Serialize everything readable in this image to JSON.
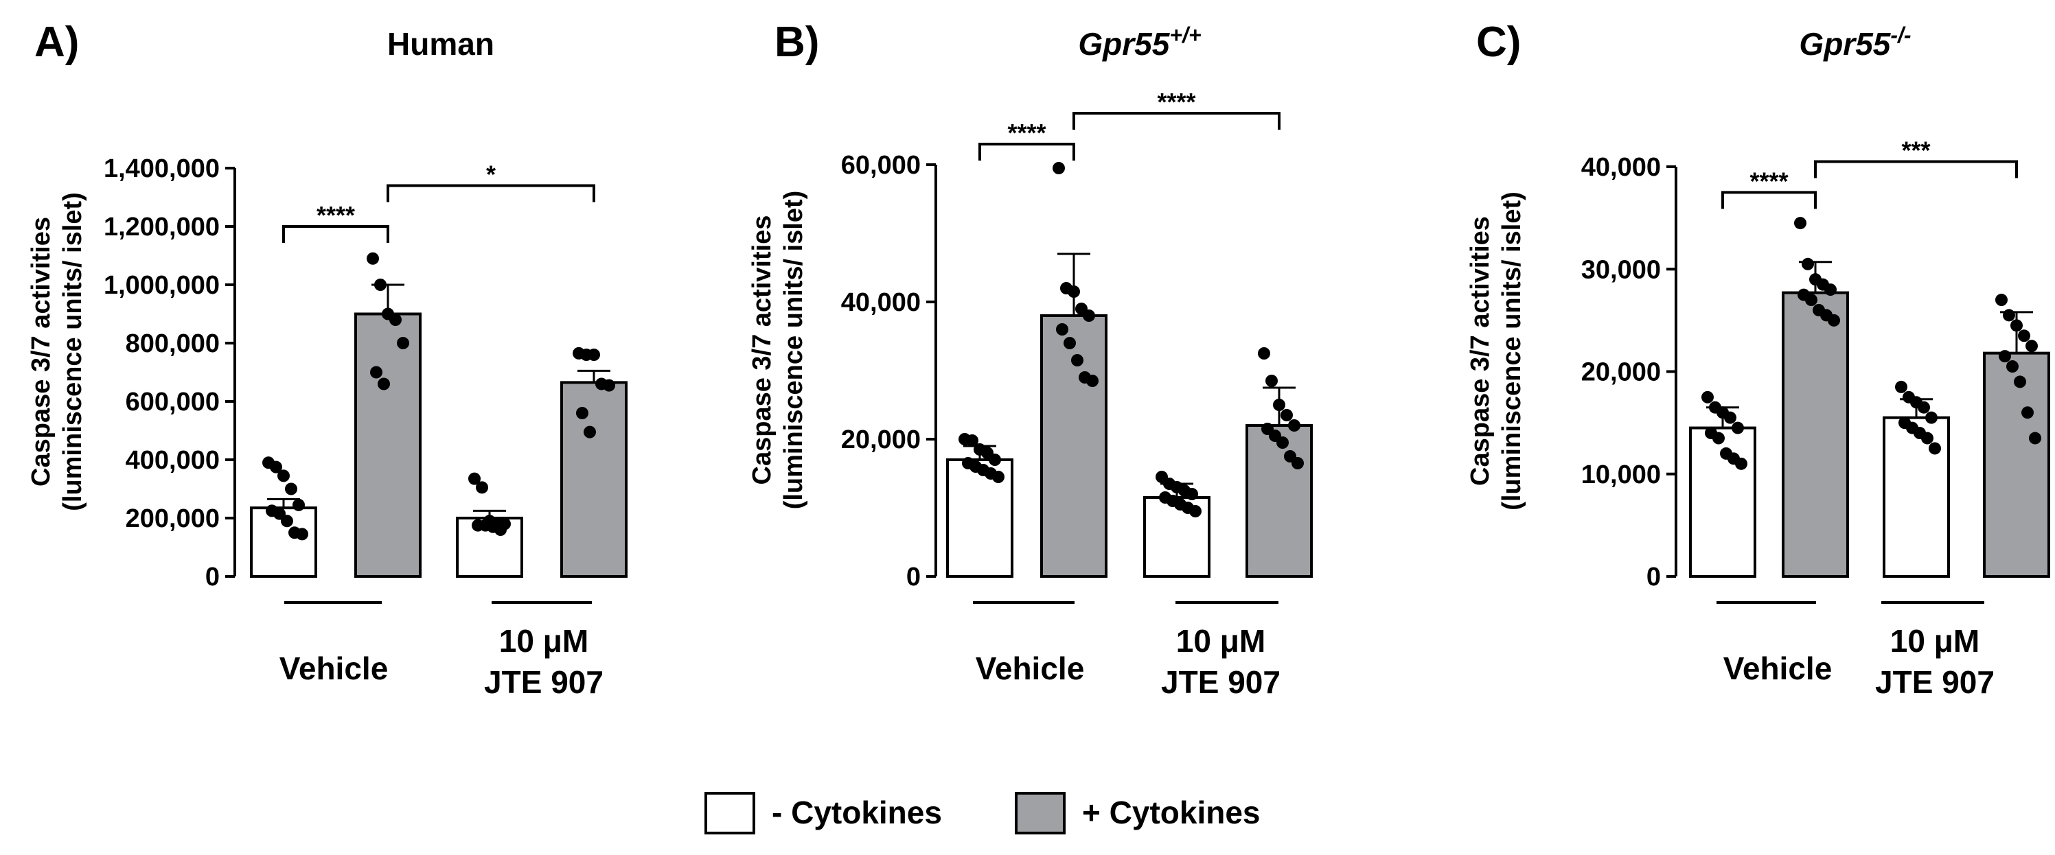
{
  "legend": [
    {
      "label": "- Cytokines",
      "color": "#ffffff"
    },
    {
      "label": "+ Cytokines",
      "color": "#a0a1a5"
    }
  ],
  "colors": {
    "minus_cytokines": "#ffffff",
    "plus_cytokines": "#a0a1a5",
    "axis": "#000000",
    "points": "#000000"
  },
  "chart_data": [
    {
      "type": "bar",
      "panel_label": "A)",
      "title": "Human",
      "title_sup": "",
      "ylabel_line1": "Caspase 3/7 activities",
      "ylabel_line2": "(luminiscence units/ islet)",
      "ylim": [
        0,
        1400000
      ],
      "yticks": [
        0,
        200000,
        400000,
        600000,
        800000,
        1000000,
        1200000,
        1400000
      ],
      "ytick_labels": [
        "0",
        "200,000",
        "400,000",
        "600,000",
        "800,000",
        "1,000,000",
        "1,200,000",
        "1,400,000"
      ],
      "groups": [
        {
          "label_lines": [
            "Vehicle"
          ]
        },
        {
          "label_lines": [
            "10 μM",
            "JTE 907"
          ]
        }
      ],
      "bars": [
        {
          "series": "- Cytokines",
          "group": 0,
          "value": 235000,
          "sem": 30000,
          "points": [
            390000,
            375000,
            345000,
            300000,
            245000,
            225000,
            215000,
            190000,
            150000,
            145000
          ]
        },
        {
          "series": "+ Cytokines",
          "group": 0,
          "value": 900000,
          "sem": 100000,
          "points": [
            1090000,
            1000000,
            900000,
            880000,
            800000,
            700000,
            660000
          ]
        },
        {
          "series": "- Cytokines",
          "group": 1,
          "value": 200000,
          "sem": 25000,
          "points": [
            335000,
            305000,
            190000,
            180000,
            180000,
            175000,
            175000,
            170000,
            160000
          ]
        },
        {
          "series": "+ Cytokines",
          "group": 1,
          "value": 665000,
          "sem": 40000,
          "points": [
            765000,
            760000,
            760000,
            660000,
            655000,
            560000,
            495000
          ]
        }
      ],
      "significance": [
        {
          "from_bar": 0,
          "to_bar": 1,
          "label": "****",
          "y": 1200000
        },
        {
          "from_bar": 1,
          "to_bar": 3,
          "label": "*",
          "y": 1340000
        }
      ]
    },
    {
      "type": "bar",
      "panel_label": "B)",
      "title": "Gpr55",
      "title_sup": "+/+",
      "ylabel_line1": "Caspase 3/7 activities",
      "ylabel_line2": "(luminiscence units/ islet)",
      "ylim": [
        0,
        60000
      ],
      "yticks": [
        0,
        20000,
        40000,
        60000
      ],
      "ytick_labels": [
        "0",
        "20,000",
        "40,000",
        "60,000"
      ],
      "groups": [
        {
          "label_lines": [
            "Vehicle"
          ]
        },
        {
          "label_lines": [
            "10 μM",
            "JTE 907"
          ]
        }
      ],
      "bars": [
        {
          "series": "- Cytokines",
          "group": 0,
          "value": 17000,
          "sem": 2000,
          "points": [
            20000,
            19800,
            18500,
            18000,
            17000,
            16500,
            16000,
            15500,
            15000,
            14500
          ]
        },
        {
          "series": "+ Cytokines",
          "group": 0,
          "value": 38000,
          "sem": 9000,
          "points": [
            59500,
            42000,
            41500,
            39000,
            38000,
            36000,
            34000,
            31500,
            29000,
            28500
          ]
        },
        {
          "series": "- Cytokines",
          "group": 1,
          "value": 11500,
          "sem": 2000,
          "points": [
            14500,
            13500,
            13000,
            12500,
            12000,
            11500,
            11000,
            10500,
            10000,
            9500
          ]
        },
        {
          "series": "+ Cytokines",
          "group": 1,
          "value": 22000,
          "sem": 5500,
          "points": [
            32500,
            28500,
            25000,
            23500,
            22000,
            21500,
            20500,
            19500,
            17500,
            16500
          ]
        }
      ],
      "significance": [
        {
          "from_bar": 0,
          "to_bar": 1,
          "label": "****",
          "y": 63000
        },
        {
          "from_bar": 1,
          "to_bar": 3,
          "label": "****",
          "y": 67500
        }
      ]
    },
    {
      "type": "bar",
      "panel_label": "C)",
      "title": "Gpr55",
      "title_sup": "-/-",
      "ylabel_line1": "Caspase 3/7 activities",
      "ylabel_line2": "(luminiscence units/ islet)",
      "ylim": [
        0,
        40000
      ],
      "yticks": [
        0,
        10000,
        20000,
        30000,
        40000
      ],
      "ytick_labels": [
        "0",
        "10,000",
        "20,000",
        "30,000",
        "40,000"
      ],
      "groups": [
        {
          "label_lines": [
            "Vehicle"
          ]
        },
        {
          "label_lines": [
            "10 μM",
            "JTE 907"
          ]
        }
      ],
      "bars": [
        {
          "series": "- Cytokines",
          "group": 0,
          "value": 14500,
          "sem": 2000,
          "points": [
            17500,
            16500,
            16000,
            15500,
            14500,
            14000,
            13500,
            12000,
            11500,
            11000
          ]
        },
        {
          "series": "+ Cytokines",
          "group": 0,
          "value": 27700,
          "sem": 3000,
          "points": [
            34500,
            30500,
            29000,
            28500,
            28000,
            27500,
            27000,
            26000,
            25500,
            25000
          ]
        },
        {
          "series": "- Cytokines",
          "group": 1,
          "value": 15500,
          "sem": 1800,
          "points": [
            18500,
            17500,
            17000,
            16500,
            15500,
            15000,
            14500,
            14000,
            13500,
            12500
          ]
        },
        {
          "series": "+ Cytokines",
          "group": 1,
          "value": 21800,
          "sem": 4000,
          "points": [
            27000,
            25500,
            24500,
            23500,
            22500,
            21500,
            20500,
            19000,
            16000,
            13500
          ]
        }
      ],
      "significance": [
        {
          "from_bar": 0,
          "to_bar": 1,
          "label": "****",
          "y": 37500
        },
        {
          "from_bar": 1,
          "to_bar": 3,
          "label": "***",
          "y": 40500
        }
      ]
    }
  ]
}
